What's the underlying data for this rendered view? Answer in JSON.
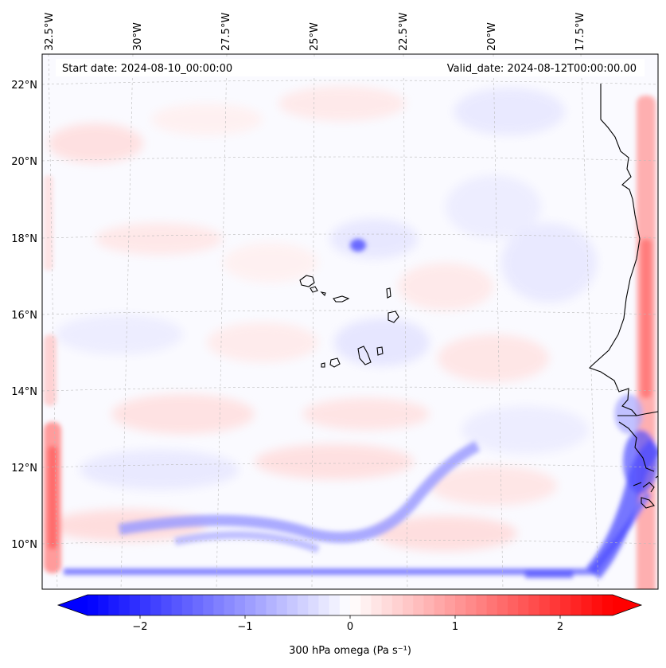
{
  "header": {
    "start_date": "Start date: 2024-08-10_00:00:00",
    "valid_date": "Valid_date: 2024-08-12T00:00:00.00"
  },
  "map": {
    "lon_labels": [
      "32.5°W",
      "30°W",
      "27.5°W",
      "25°W",
      "22.5°W",
      "20°W",
      "17.5°W"
    ],
    "lat_labels": [
      "22°N",
      "20°N",
      "18°N",
      "16°N",
      "14°N",
      "12°N",
      "10°N"
    ],
    "extent": {
      "lon_min": -32.6,
      "lon_max": -15.3,
      "lat_min": 8.9,
      "lat_max": 22.8
    },
    "coastline_color": "#000000",
    "gridline_color": "#bbbbbb"
  },
  "colorbar": {
    "label": "300 hPa omega (Pa s⁻¹)",
    "ticks": [
      "−2",
      "−1",
      "0",
      "1",
      "2"
    ],
    "tick_values": [
      -2,
      -1,
      0,
      1,
      2
    ],
    "range": [
      -2.5,
      2.5
    ],
    "cmap": "bwr",
    "low_color": "#0000ff",
    "mid_color": "#ffffff",
    "high_color": "#ff0000"
  }
}
